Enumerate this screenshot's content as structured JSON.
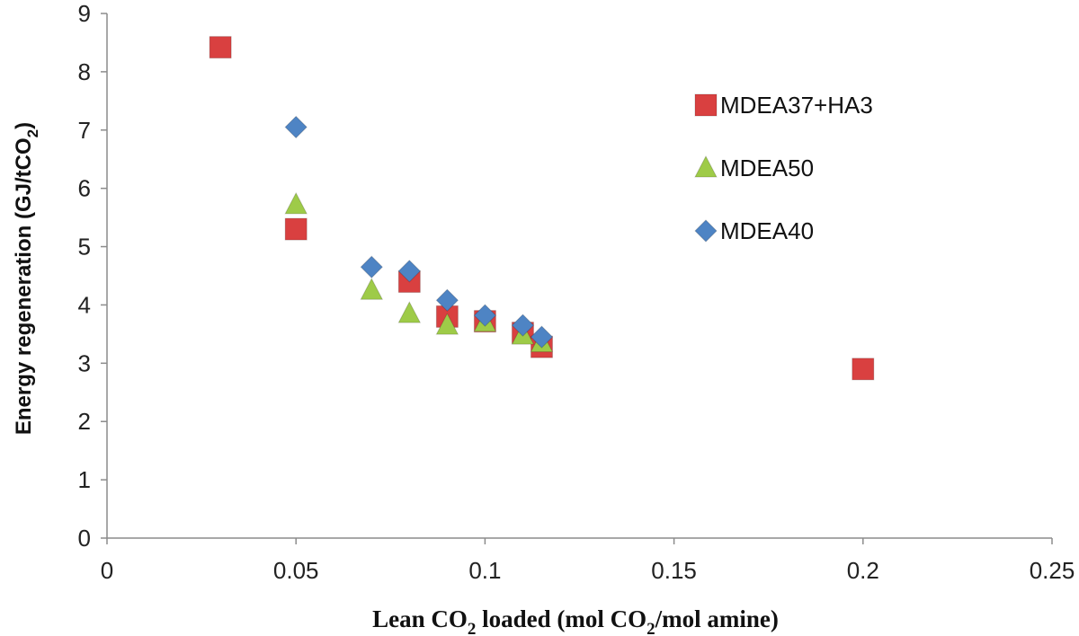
{
  "chart_data": {
    "type": "scatter",
    "title": "",
    "xlabel": {
      "before": "Lean CO",
      "sub1": "2",
      "middle": " loaded (mol CO",
      "sub2": "2",
      "after": "/mol amine)"
    },
    "ylabel": {
      "before": "Energy regeneration (GJ/tCO",
      "sub": "2",
      "after": ")"
    },
    "xlim": [
      0,
      0.25
    ],
    "ylim": [
      0,
      9
    ],
    "xticks": [
      "0",
      "0.05",
      "0.1",
      "0.15",
      "0.2",
      "0.25"
    ],
    "yticks": [
      "0",
      "1",
      "2",
      "3",
      "4",
      "5",
      "6",
      "7",
      "8",
      "9"
    ],
    "grid": false,
    "legend_position": "right",
    "series": [
      {
        "name": "MDEA37+HA3",
        "marker": "square",
        "color": "#d94040",
        "x": [
          0.03,
          0.05,
          0.08,
          0.09,
          0.1,
          0.11,
          0.115,
          0.2
        ],
        "y": [
          8.42,
          5.3,
          4.4,
          3.8,
          3.72,
          3.52,
          3.28,
          2.9
        ]
      },
      {
        "name": "MDEA50",
        "marker": "triangle",
        "color": "#9ecb48",
        "x": [
          0.05,
          0.07,
          0.08,
          0.09,
          0.1,
          0.11,
          0.115
        ],
        "y": [
          5.72,
          4.25,
          3.85,
          3.65,
          3.7,
          3.48,
          3.35
        ]
      },
      {
        "name": "MDEA40",
        "marker": "diamond",
        "color": "#4e84c4",
        "x": [
          0.05,
          0.07,
          0.08,
          0.09,
          0.1,
          0.11,
          0.115
        ],
        "y": [
          7.05,
          4.65,
          4.58,
          4.08,
          3.82,
          3.65,
          3.45
        ]
      }
    ]
  }
}
